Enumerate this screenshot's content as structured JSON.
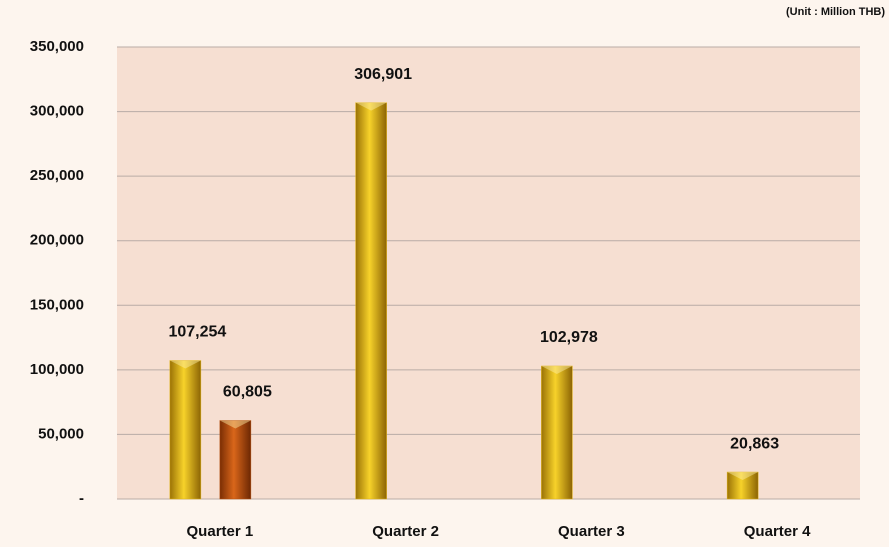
{
  "chart_data": {
    "type": "bar",
    "annotation": "(Unit : Million THB)",
    "categories": [
      "Quarter 1",
      "Quarter 2",
      "Quarter 3",
      "Quarter 4"
    ],
    "series": [
      {
        "color": "#e2b414",
        "values": [
          107254,
          306901,
          102978,
          20863
        ],
        "value_labels": [
          "107,254",
          "306,901",
          "102,978",
          "20,863"
        ]
      },
      {
        "color": "#b8500e",
        "values": [
          60805,
          null,
          null,
          null
        ],
        "value_labels": [
          "60,805",
          null,
          null,
          null
        ]
      }
    ],
    "ylim": [
      0,
      350000
    ],
    "yticks": [
      {
        "value": 0,
        "label": "-"
      },
      {
        "value": 50000,
        "label": "50,000"
      },
      {
        "value": 100000,
        "label": "100,000"
      },
      {
        "value": 150000,
        "label": "150,000"
      },
      {
        "value": 200000,
        "label": "200,000"
      },
      {
        "value": 250000,
        "label": "250,000"
      },
      {
        "value": 300000,
        "label": "300,000"
      },
      {
        "value": 350000,
        "label": "350,000"
      }
    ],
    "grid": true
  }
}
